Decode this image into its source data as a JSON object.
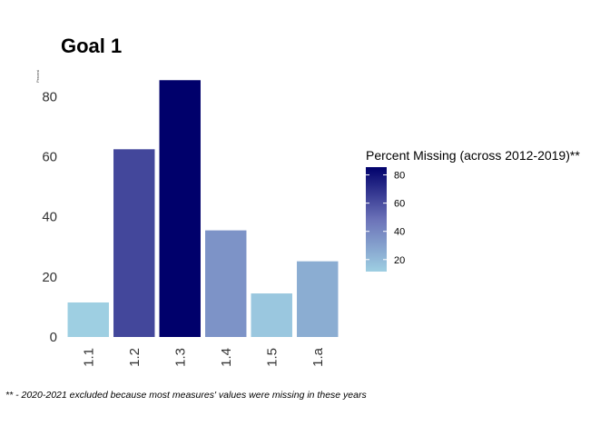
{
  "chart_data": {
    "type": "bar",
    "title": "Goal  1",
    "ylabel": "Percent",
    "xlabel": "",
    "categories": [
      "1.1",
      "1.2",
      "1.3",
      "1.4",
      "1.5",
      "1.a"
    ],
    "values": [
      11.5,
      62.5,
      85.5,
      35.5,
      14.5,
      25.2
    ],
    "ylim": [
      0,
      88
    ],
    "yticks": [
      0,
      20,
      40,
      60,
      80
    ],
    "grid": false,
    "legend": {
      "title": "Percent Missing (across 2012-2019)**",
      "placement": "right",
      "ticks": [
        20,
        40,
        60,
        80
      ],
      "range": [
        11.5,
        85.5
      ],
      "color_low": "#9ecfe2",
      "color_mid": "#6b72b8",
      "color_high": "#00006b"
    },
    "caption": "** - 2020-2021 excluded because most measures' values were missing in these years"
  }
}
